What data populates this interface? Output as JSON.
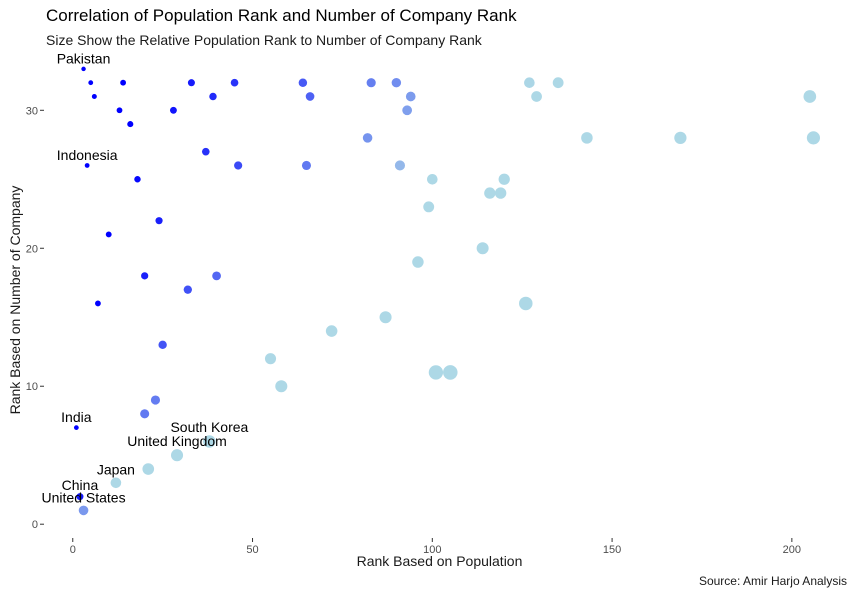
{
  "chart_data": {
    "type": "scatter",
    "title": "Correlation of Population Rank and Number of Company Rank",
    "subtitle": "Size Show the Relative Population Rank to Number of Company Rank",
    "caption": "Source: Amir Harjo Analysis",
    "xlabel": "Rank Based on Population",
    "ylabel": "Rank Based on Number of Company",
    "xlim": [
      -8,
      212
    ],
    "ylim": [
      -1,
      33.5
    ],
    "xticks": [
      0,
      50,
      100,
      150,
      200
    ],
    "yticks": [
      0,
      10,
      20,
      30
    ],
    "grid": false,
    "legend": "none",
    "colors": {
      "light": "#add8e6",
      "dark": "#0000ff"
    },
    "points": [
      {
        "x": 5,
        "y": 32
      },
      {
        "x": 14,
        "y": 32
      },
      {
        "x": 33,
        "y": 32
      },
      {
        "x": 45,
        "y": 32
      },
      {
        "x": 64,
        "y": 32
      },
      {
        "x": 83,
        "y": 32
      },
      {
        "x": 90,
        "y": 32
      },
      {
        "x": 127,
        "y": 32
      },
      {
        "x": 135,
        "y": 32
      },
      {
        "x": 6,
        "y": 31
      },
      {
        "x": 39,
        "y": 31
      },
      {
        "x": 66,
        "y": 31
      },
      {
        "x": 94,
        "y": 31
      },
      {
        "x": 129,
        "y": 31
      },
      {
        "x": 205,
        "y": 31
      },
      {
        "x": 13,
        "y": 30
      },
      {
        "x": 28,
        "y": 30
      },
      {
        "x": 93,
        "y": 30
      },
      {
        "x": 16,
        "y": 29
      },
      {
        "x": 82,
        "y": 28
      },
      {
        "x": 143,
        "y": 28
      },
      {
        "x": 169,
        "y": 28
      },
      {
        "x": 206,
        "y": 28
      },
      {
        "x": 37,
        "y": 27
      },
      {
        "x": 4,
        "y": 26,
        "label": "Indonesia"
      },
      {
        "x": 46,
        "y": 26
      },
      {
        "x": 65,
        "y": 26
      },
      {
        "x": 91,
        "y": 26
      },
      {
        "x": 18,
        "y": 25
      },
      {
        "x": 100,
        "y": 25
      },
      {
        "x": 120,
        "y": 25
      },
      {
        "x": 116,
        "y": 24
      },
      {
        "x": 119,
        "y": 24
      },
      {
        "x": 99,
        "y": 23
      },
      {
        "x": 24,
        "y": 22
      },
      {
        "x": 10,
        "y": 21
      },
      {
        "x": 114,
        "y": 20
      },
      {
        "x": 96,
        "y": 19
      },
      {
        "x": 20,
        "y": 18
      },
      {
        "x": 40,
        "y": 18
      },
      {
        "x": 32,
        "y": 17
      },
      {
        "x": 7,
        "y": 16
      },
      {
        "x": 126,
        "y": 16
      },
      {
        "x": 87,
        "y": 15
      },
      {
        "x": 72,
        "y": 14
      },
      {
        "x": 25,
        "y": 13
      },
      {
        "x": 55,
        "y": 12
      },
      {
        "x": 101,
        "y": 11
      },
      {
        "x": 105,
        "y": 11
      },
      {
        "x": 58,
        "y": 10
      },
      {
        "x": 23,
        "y": 9
      },
      {
        "x": 20,
        "y": 8
      },
      {
        "x": 1,
        "y": 7,
        "label": "India"
      },
      {
        "x": 38,
        "y": 6,
        "label": "South Korea"
      },
      {
        "x": 29,
        "y": 5,
        "label": "United Kingdom"
      },
      {
        "x": 21,
        "y": 4
      },
      {
        "x": 12,
        "y": 3,
        "label": "Japan"
      },
      {
        "x": 2,
        "y": 2,
        "label": "China"
      },
      {
        "x": 3,
        "y": 1,
        "label": "United States"
      },
      {
        "x": 3,
        "y": 33,
        "label": "Pakistan"
      }
    ]
  }
}
